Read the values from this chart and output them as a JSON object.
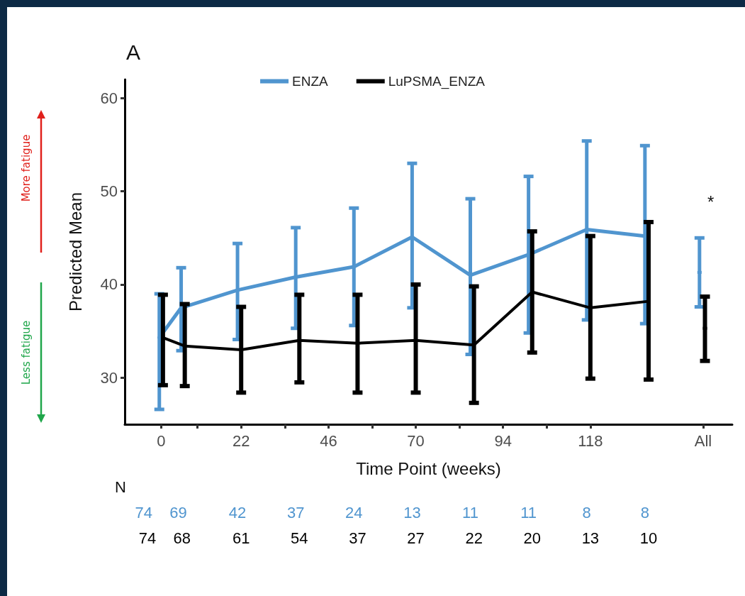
{
  "chart_data": {
    "type": "line",
    "xlabel": "Time Point (weeks)",
    "ylabel": "Predicted Mean",
    "annotations": [
      "A",
      "More fatigue",
      "Less fatigue",
      "N",
      "74",
      "69",
      "42",
      "37",
      "24",
      "13",
      "11",
      "11",
      "8",
      "8",
      "74",
      "68",
      "61",
      "54",
      "37",
      "27",
      "22",
      "20",
      "13",
      "10",
      "*"
    ],
    "xlim": [
      -10,
      157
    ],
    "xticks": [
      0,
      {
        "value": 10,
        "label": null
      },
      22,
      {
        "value": 34,
        "label": null
      },
      46,
      {
        "value": 58,
        "label": null
      },
      70,
      {
        "value": 82,
        "label": null
      },
      94,
      {
        "value": 106,
        "label": null
      },
      118,
      {
        "value": 149,
        "label": "All"
      }
    ],
    "ylim": [
      25,
      62
    ],
    "yticks": [
      30,
      40,
      50,
      60
    ],
    "grid": false,
    "legend": "top",
    "marker": "none",
    "line_style": "solid",
    "series": [
      {
        "name": "ENZA",
        "color": "#5095cf",
        "x": [
          -0.5,
          5.5,
          21,
          37,
          53,
          69,
          85,
          101,
          117,
          133,
          141,
          148
        ],
        "values": [
          34.3,
          37.5,
          39.4,
          40.8,
          41.9,
          45.1,
          41.0,
          43.2,
          45.9,
          45.2,
          null,
          41.3
        ],
        "errors": [
          [
            26.6,
            39.0
          ],
          [
            32.9,
            41.8
          ],
          [
            34.1,
            44.4
          ],
          [
            35.3,
            46.1
          ],
          [
            35.6,
            48.2
          ],
          [
            37.5,
            53.0
          ],
          [
            32.5,
            49.2
          ],
          [
            34.8,
            51.6
          ],
          [
            36.2,
            55.4
          ],
          [
            35.8,
            54.9
          ],
          null,
          [
            37.6,
            45.0
          ]
        ]
      },
      {
        "name": "LuPSMA_ENZA",
        "color": "#000000",
        "x": [
          0.5,
          6.5,
          22,
          38,
          54,
          70,
          86,
          102,
          118,
          134,
          142,
          149.5
        ],
        "values": [
          34.3,
          33.4,
          33.0,
          34.0,
          33.7,
          34.0,
          33.5,
          39.2,
          37.5,
          38.2,
          null,
          35.3
        ],
        "errors": [
          [
            29.2,
            38.9
          ],
          [
            29.1,
            37.9
          ],
          [
            28.4,
            37.6
          ],
          [
            29.5,
            38.9
          ],
          [
            28.4,
            38.9
          ],
          [
            28.4,
            40.0
          ],
          [
            27.3,
            39.8
          ],
          [
            32.7,
            45.7
          ],
          [
            29.9,
            45.2
          ],
          [
            29.8,
            46.7
          ],
          null,
          [
            31.8,
            38.7
          ]
        ]
      }
    ]
  }
}
